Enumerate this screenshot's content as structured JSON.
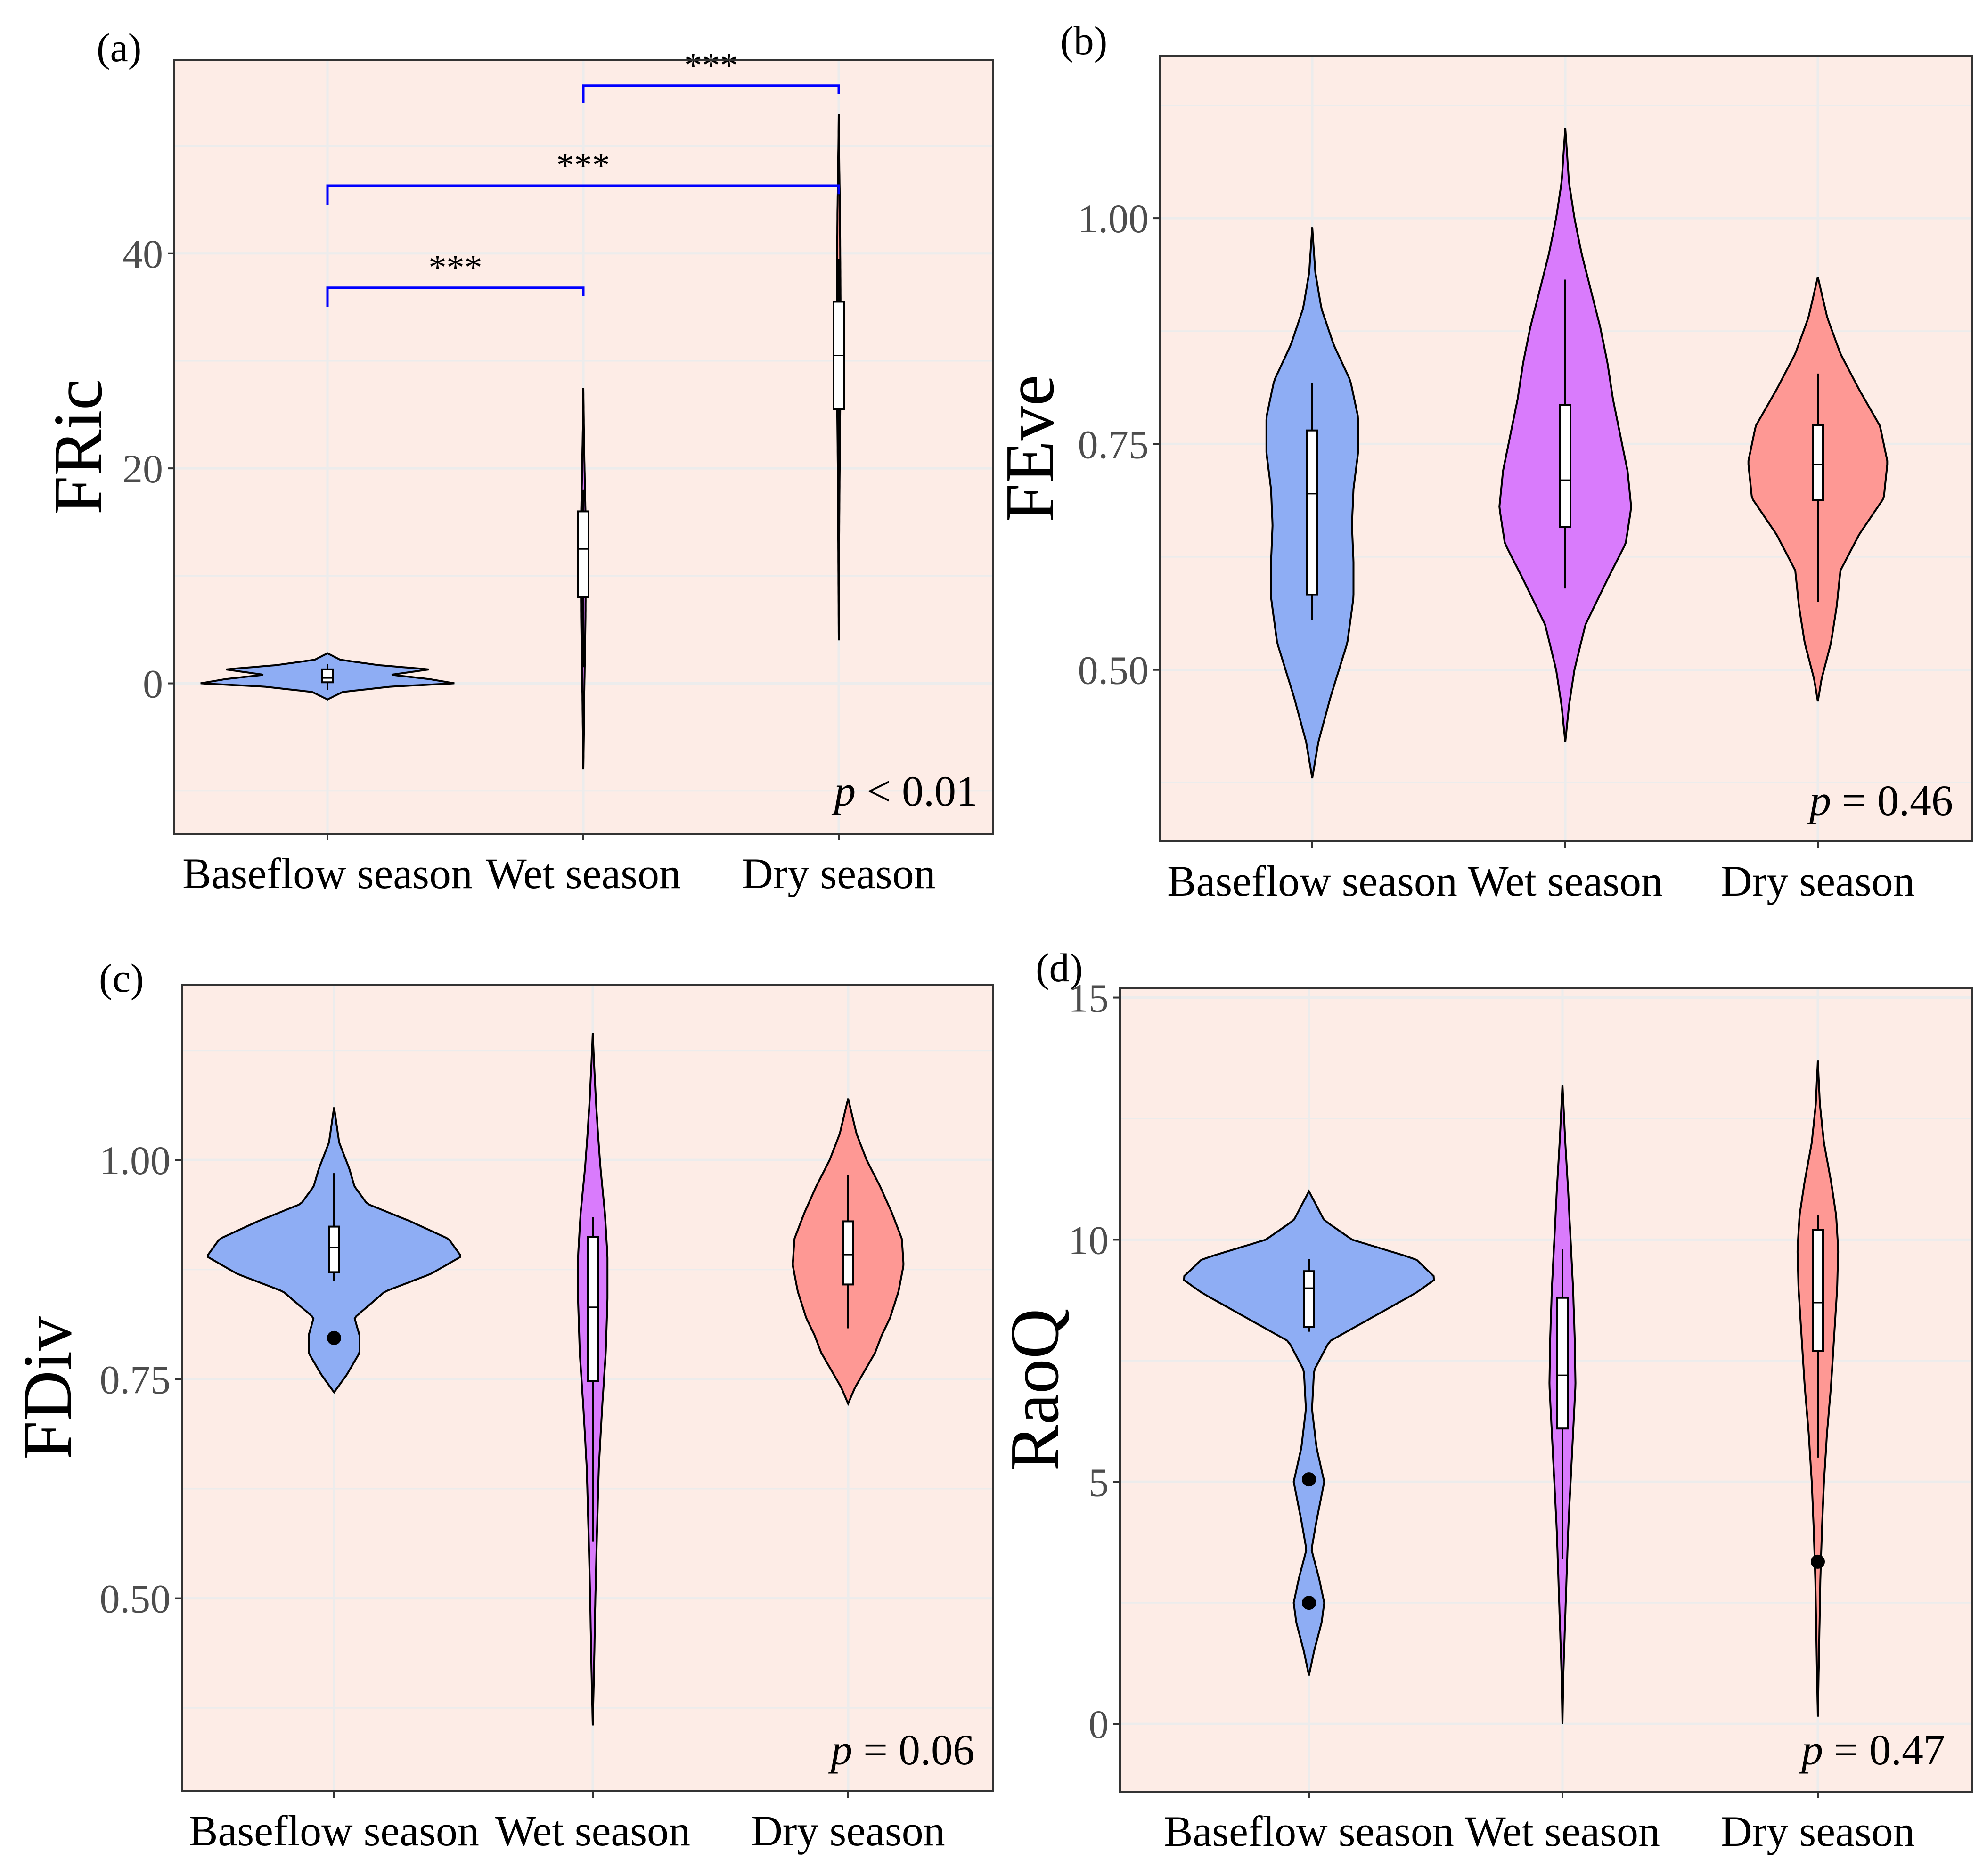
{
  "figure": {
    "categories": [
      "Baseflow season",
      "Wet season",
      "Dry season"
    ],
    "colors": {
      "panel_background": "#fdece6",
      "grid": "#ececec",
      "baseflow": "#8eadf4",
      "wet": "#d97bfc",
      "dry": "#fe9894",
      "bracket": "#0000ff",
      "outline": "#000000"
    }
  },
  "chart_data": [
    {
      "type": "violin",
      "panel_label": "(a)",
      "ylabel": "FRic",
      "ylim": [
        -14,
        58
      ],
      "yticks": [
        0,
        20,
        40
      ],
      "ytick_labels": [
        "0",
        "20",
        "40"
      ],
      "p_prefix": "p",
      "p_text": " < 0.01",
      "categories": [
        "Baseflow season",
        "Wet season",
        "Dry season"
      ],
      "series": [
        {
          "name": "Baseflow season",
          "color": "#8eadf4",
          "violin_min": -1.5,
          "violin_max": 2.8,
          "max_halfwidth": 0.5,
          "density": [
            [
              -1.5,
              0
            ],
            [
              -0.8,
              0.06
            ],
            [
              -0.3,
              0.25
            ],
            [
              0,
              0.5
            ],
            [
              0.4,
              0.4
            ],
            [
              0.8,
              0.25
            ],
            [
              1.3,
              0.4
            ],
            [
              1.7,
              0.2
            ],
            [
              2.2,
              0.05
            ],
            [
              2.8,
              0
            ]
          ],
          "box": {
            "whisker_low": -0.6,
            "q1": 0.1,
            "median": 0.5,
            "q3": 1.3,
            "whisker_high": 1.8
          },
          "outliers": []
        },
        {
          "name": "Wet season",
          "color": "#d97bfc",
          "violin_min": -8,
          "violin_max": 27.5,
          "max_halfwidth": 0.07,
          "density": [
            [
              -8,
              0
            ],
            [
              -5,
              0.012
            ],
            [
              -1,
              0.025
            ],
            [
              2,
              0.042
            ],
            [
              6,
              0.06
            ],
            [
              10,
              0.068
            ],
            [
              13,
              0.07
            ],
            [
              16,
              0.06
            ],
            [
              18,
              0.045
            ],
            [
              21,
              0.028
            ],
            [
              24,
              0.012
            ],
            [
              27.5,
              0
            ]
          ],
          "box": {
            "whisker_low": 1.5,
            "q1": 8,
            "median": 12.5,
            "q3": 16,
            "whisker_high": 18
          },
          "outliers": []
        },
        {
          "name": "Dry season",
          "color": "#fe9894",
          "violin_min": 4,
          "violin_max": 53,
          "max_halfwidth": 0.06,
          "density": [
            [
              4,
              0
            ],
            [
              9,
              0.008
            ],
            [
              14,
              0.016
            ],
            [
              18,
              0.025
            ],
            [
              22,
              0.036
            ],
            [
              26,
              0.05
            ],
            [
              30,
              0.058
            ],
            [
              33,
              0.06
            ],
            [
              36,
              0.058
            ],
            [
              40,
              0.05
            ],
            [
              44,
              0.04
            ],
            [
              47,
              0.024
            ],
            [
              50,
              0.01
            ],
            [
              53,
              0
            ]
          ],
          "box": {
            "whisker_low": 17.5,
            "q1": 25.5,
            "median": 30.5,
            "q3": 35.5,
            "whisker_high": 39.5
          },
          "outliers": []
        }
      ],
      "brackets": [
        {
          "from": 0,
          "to": 1,
          "y": 36.8,
          "left_tip": 35,
          "right_tip": 36,
          "label": "***"
        },
        {
          "from": 0,
          "to": 2,
          "y": 46.3,
          "left_tip": 44.5,
          "right_tip": 45.5,
          "label": "***"
        },
        {
          "from": 1,
          "to": 2,
          "y": 55.6,
          "left_tip": 54,
          "right_tip": 54.8,
          "label": "***"
        }
      ]
    },
    {
      "type": "violin",
      "panel_label": "(b)",
      "ylabel": "FEve",
      "ylim": [
        0.31,
        1.18
      ],
      "yticks": [
        0.5,
        0.75,
        1.0
      ],
      "ytick_labels": [
        "0.50",
        "0.75",
        "1.00"
      ],
      "p_prefix": "p",
      "p_text": " = 0.46",
      "categories": [
        "Baseflow season",
        "Wet season",
        "Dry season"
      ],
      "series": [
        {
          "name": "Baseflow season",
          "color": "#8eadf4",
          "violin_min": 0.38,
          "violin_max": 0.99,
          "max_halfwidth": 0.3,
          "density": [
            [
              0.38,
              0
            ],
            [
              0.42,
              0.04
            ],
            [
              0.47,
              0.12
            ],
            [
              0.53,
              0.23
            ],
            [
              0.58,
              0.27
            ],
            [
              0.62,
              0.27
            ],
            [
              0.66,
              0.26
            ],
            [
              0.7,
              0.27
            ],
            [
              0.74,
              0.3
            ],
            [
              0.78,
              0.3
            ],
            [
              0.82,
              0.25
            ],
            [
              0.86,
              0.14
            ],
            [
              0.9,
              0.06
            ],
            [
              0.94,
              0.02
            ],
            [
              0.99,
              0
            ]
          ],
          "box": {
            "whisker_low": 0.555,
            "q1": 0.583,
            "median": 0.695,
            "q3": 0.765,
            "whisker_high": 0.818
          },
          "outliers": []
        },
        {
          "name": "Wet season",
          "color": "#d97bfc",
          "violin_min": 0.42,
          "violin_max": 1.1,
          "max_halfwidth": 0.36,
          "density": [
            [
              0.42,
              0
            ],
            [
              0.46,
              0.02
            ],
            [
              0.5,
              0.05
            ],
            [
              0.55,
              0.11
            ],
            [
              0.6,
              0.23
            ],
            [
              0.64,
              0.33
            ],
            [
              0.68,
              0.36
            ],
            [
              0.72,
              0.34
            ],
            [
              0.76,
              0.3
            ],
            [
              0.8,
              0.26
            ],
            [
              0.84,
              0.23
            ],
            [
              0.88,
              0.19
            ],
            [
              0.92,
              0.14
            ],
            [
              0.96,
              0.09
            ],
            [
              1.0,
              0.05
            ],
            [
              1.04,
              0.02
            ],
            [
              1.1,
              0
            ]
          ],
          "box": {
            "whisker_low": 0.59,
            "q1": 0.658,
            "median": 0.71,
            "q3": 0.793,
            "whisker_high": 0.932
          },
          "outliers": []
        },
        {
          "name": "Dry season",
          "color": "#fe9894",
          "violin_min": 0.465,
          "violin_max": 0.935,
          "max_halfwidth": 0.37,
          "density": [
            [
              0.465,
              0
            ],
            [
              0.49,
              0.02
            ],
            [
              0.53,
              0.07
            ],
            [
              0.57,
              0.1
            ],
            [
              0.61,
              0.12
            ],
            [
              0.65,
              0.22
            ],
            [
              0.69,
              0.35
            ],
            [
              0.73,
              0.37
            ],
            [
              0.77,
              0.33
            ],
            [
              0.81,
              0.22
            ],
            [
              0.85,
              0.12
            ],
            [
              0.89,
              0.05
            ],
            [
              0.935,
              0
            ]
          ],
          "box": {
            "whisker_low": 0.575,
            "q1": 0.688,
            "median": 0.727,
            "q3": 0.771,
            "whisker_high": 0.828
          },
          "outliers": []
        }
      ],
      "brackets": []
    },
    {
      "type": "violin",
      "panel_label": "(c)",
      "ylabel": "FDiv",
      "ylim": [
        0.28,
        1.2
      ],
      "yticks": [
        0.5,
        0.75,
        1.0
      ],
      "ytick_labels": [
        "0.50",
        "0.75",
        "1.00"
      ],
      "p_prefix": "p",
      "p_text": " = 0.06",
      "categories": [
        "Baseflow season",
        "Wet season",
        "Dry season"
      ],
      "series": [
        {
          "name": "Baseflow season",
          "color": "#8eadf4",
          "violin_min": 0.735,
          "violin_max": 1.06,
          "max_halfwidth": 0.5,
          "density": [
            [
              0.735,
              0
            ],
            [
              0.755,
              0.05
            ],
            [
              0.78,
              0.1
            ],
            [
              0.8,
              0.1
            ],
            [
              0.82,
              0.08
            ],
            [
              0.85,
              0.2
            ],
            [
              0.87,
              0.38
            ],
            [
              0.89,
              0.5
            ],
            [
              0.91,
              0.45
            ],
            [
              0.93,
              0.3
            ],
            [
              0.95,
              0.13
            ],
            [
              0.97,
              0.08
            ],
            [
              0.99,
              0.06
            ],
            [
              1.02,
              0.02
            ],
            [
              1.06,
              0
            ]
          ],
          "box": {
            "whisker_low": 0.862,
            "q1": 0.872,
            "median": 0.9,
            "q3": 0.924,
            "whisker_high": 0.985
          },
          "outliers": [
            0.797
          ]
        },
        {
          "name": "Wet season",
          "color": "#d97bfc",
          "violin_min": 0.355,
          "violin_max": 1.145,
          "max_halfwidth": 0.17,
          "density": [
            [
              0.355,
              0
            ],
            [
              0.42,
              0.015
            ],
            [
              0.5,
              0.03
            ],
            [
              0.58,
              0.05
            ],
            [
              0.65,
              0.07
            ],
            [
              0.72,
              0.11
            ],
            [
              0.78,
              0.15
            ],
            [
              0.84,
              0.17
            ],
            [
              0.89,
              0.17
            ],
            [
              0.94,
              0.14
            ],
            [
              0.99,
              0.09
            ],
            [
              1.03,
              0.06
            ],
            [
              1.07,
              0.035
            ],
            [
              1.11,
              0.015
            ],
            [
              1.145,
              0
            ]
          ],
          "box": {
            "whisker_low": 0.565,
            "q1": 0.748,
            "median": 0.832,
            "q3": 0.912,
            "whisker_high": 0.935
          },
          "outliers": []
        },
        {
          "name": "Dry season",
          "color": "#fe9894",
          "violin_min": 0.722,
          "violin_max": 1.07,
          "max_halfwidth": 0.33,
          "density": [
            [
              0.722,
              0
            ],
            [
              0.74,
              0.04
            ],
            [
              0.76,
              0.1
            ],
            [
              0.78,
              0.16
            ],
            [
              0.8,
              0.2
            ],
            [
              0.82,
              0.25
            ],
            [
              0.85,
              0.3
            ],
            [
              0.88,
              0.33
            ],
            [
              0.91,
              0.32
            ],
            [
              0.94,
              0.26
            ],
            [
              0.97,
              0.19
            ],
            [
              1.0,
              0.11
            ],
            [
              1.03,
              0.05
            ],
            [
              1.07,
              0
            ]
          ],
          "box": {
            "whisker_low": 0.808,
            "q1": 0.858,
            "median": 0.892,
            "q3": 0.93,
            "whisker_high": 0.983
          },
          "outliers": []
        }
      ],
      "brackets": []
    },
    {
      "type": "violin",
      "panel_label": "(d)",
      "ylabel": "RaoQ",
      "ylim": [
        -1.4,
        15.2
      ],
      "yticks": [
        0,
        5,
        10,
        15
      ],
      "ytick_labels": [
        "0",
        "5",
        "10",
        "15"
      ],
      "p_prefix": "p",
      "p_text": " = 0.47",
      "categories": [
        "Baseflow season",
        "Wet season",
        "Dry season"
      ],
      "series": [
        {
          "name": "Baseflow season",
          "color": "#8eadf4",
          "violin_min": 1.0,
          "violin_max": 11.0,
          "max_halfwidth": 0.5,
          "density": [
            [
              1.0,
              0
            ],
            [
              1.5,
              0.02
            ],
            [
              2.1,
              0.05
            ],
            [
              2.5,
              0.06
            ],
            [
              3.0,
              0.04
            ],
            [
              3.6,
              0.01
            ],
            [
              4.2,
              0.03
            ],
            [
              5.0,
              0.06
            ],
            [
              5.7,
              0.03
            ],
            [
              6.5,
              0.012
            ],
            [
              7.3,
              0.02
            ],
            [
              7.9,
              0.08
            ],
            [
              8.4,
              0.25
            ],
            [
              8.9,
              0.42
            ],
            [
              9.2,
              0.5
            ],
            [
              9.6,
              0.42
            ],
            [
              10.0,
              0.17
            ],
            [
              10.4,
              0.06
            ],
            [
              10.7,
              0.03
            ],
            [
              11.0,
              0
            ]
          ],
          "box": {
            "whisker_low": 8.1,
            "q1": 8.2,
            "median": 9.0,
            "q3": 9.35,
            "whisker_high": 9.6
          },
          "outliers": [
            5.05,
            2.5
          ]
        },
        {
          "name": "Wet season",
          "color": "#d97bfc",
          "violin_min": 0,
          "violin_max": 13.2,
          "max_halfwidth": 0.16,
          "density": [
            [
              0,
              0
            ],
            [
              1.0,
              0.01
            ],
            [
              2.0,
              0.03
            ],
            [
              3.0,
              0.05
            ],
            [
              4.0,
              0.07
            ],
            [
              5.0,
              0.1
            ],
            [
              6.0,
              0.13
            ],
            [
              7.0,
              0.16
            ],
            [
              8.0,
              0.15
            ],
            [
              9.0,
              0.13
            ],
            [
              10.0,
              0.1
            ],
            [
              11.0,
              0.07
            ],
            [
              12.0,
              0.035
            ],
            [
              13.2,
              0
            ]
          ],
          "box": {
            "whisker_low": 3.4,
            "q1": 6.1,
            "median": 7.2,
            "q3": 8.8,
            "whisker_high": 9.8
          },
          "outliers": []
        },
        {
          "name": "Dry season",
          "color": "#fe9894",
          "violin_min": 0.15,
          "violin_max": 13.7,
          "max_halfwidth": 0.2,
          "density": [
            [
              0.15,
              0
            ],
            [
              1.5,
              0.012
            ],
            [
              3.0,
              0.025
            ],
            [
              4.0,
              0.04
            ],
            [
              5.0,
              0.06
            ],
            [
              6.0,
              0.09
            ],
            [
              7.0,
              0.13
            ],
            [
              8.0,
              0.16
            ],
            [
              9.0,
              0.19
            ],
            [
              9.8,
              0.2
            ],
            [
              10.5,
              0.18
            ],
            [
              11.2,
              0.13
            ],
            [
              12.0,
              0.06
            ],
            [
              12.8,
              0.02
            ],
            [
              13.7,
              0
            ]
          ],
          "box": {
            "whisker_low": 5.5,
            "q1": 7.7,
            "median": 8.7,
            "q3": 10.2,
            "whisker_high": 10.5
          },
          "outliers": [
            3.35
          ]
        }
      ],
      "brackets": []
    }
  ]
}
